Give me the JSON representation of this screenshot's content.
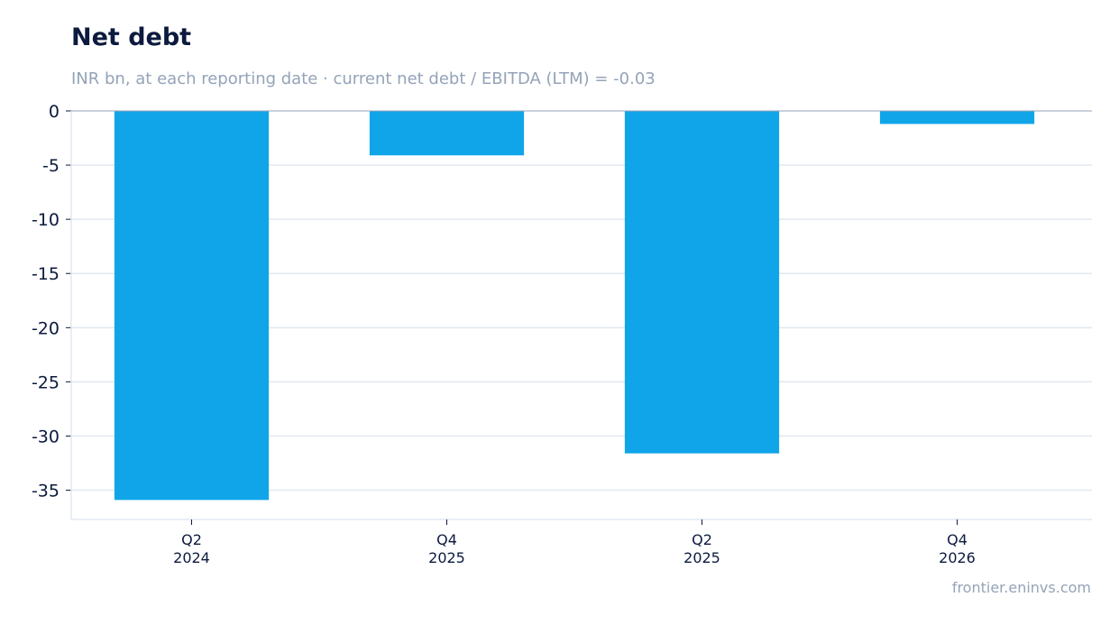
{
  "header": {
    "title": "Net debt",
    "subtitle": "INR bn, at each reporting date · current net debt / EBITDA (LTM) = -0.03"
  },
  "footer": {
    "source": "frontier.eninvs.com"
  },
  "colors": {
    "bar": "#10a5e9",
    "grid": "#e2e8f0",
    "zero_line": "#94a3b8",
    "text": "#0b1a3e",
    "muted": "#94a3b8"
  },
  "chart_data": {
    "type": "bar",
    "title": "Net debt",
    "subtitle": "INR bn, at each reporting date · current net debt / EBITDA (LTM) = -0.03",
    "categories": [
      [
        "Q2",
        "2024"
      ],
      [
        "Q4",
        "2025"
      ],
      [
        "Q2",
        "2025"
      ],
      [
        "Q4",
        "2026"
      ]
    ],
    "values": [
      -35.9,
      -4.1,
      -31.6,
      -1.2
    ],
    "xlabel": "",
    "ylabel": "",
    "ylim": [
      -37.7,
      0
    ],
    "yticks": [
      0,
      -5,
      -10,
      -15,
      -20,
      -25,
      -30,
      -35
    ],
    "ytick_labels": [
      "0",
      "-5",
      "-10",
      "-15",
      "-20",
      "-25",
      "-30",
      "-35"
    ],
    "grid": true,
    "legend": "none"
  }
}
